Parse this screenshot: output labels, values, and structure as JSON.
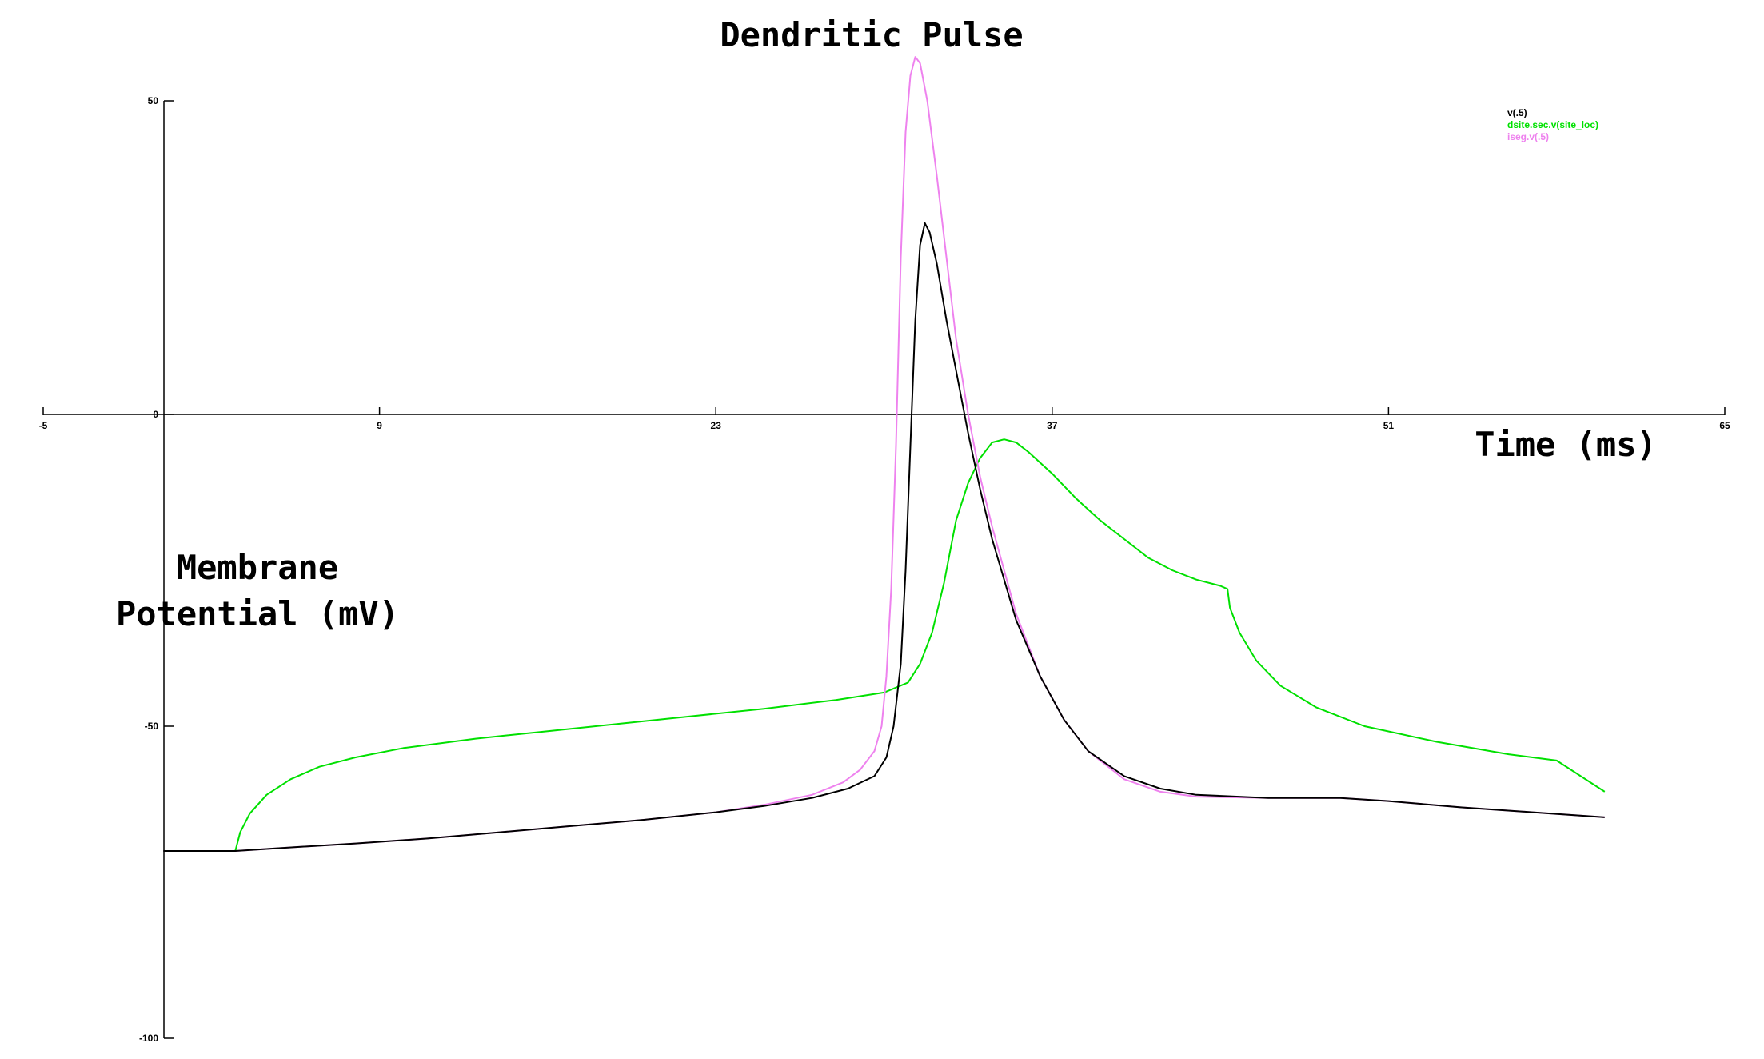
{
  "chart_data": {
    "type": "line",
    "title": "Dendritic Pulse",
    "xlabel": "Time (ms)",
    "ylabel_lines": [
      "Membrane",
      "Potential (mV)"
    ],
    "xlim": [
      -5,
      65
    ],
    "ylim": [
      -100,
      50
    ],
    "x_ticks": [
      -5,
      9,
      23,
      37,
      51,
      65
    ],
    "y_ticks": [
      50,
      0,
      -50,
      -100
    ],
    "grid": false,
    "legend_position": "top-right",
    "series": [
      {
        "name": "v(.5)",
        "color": "#000000",
        "points": [
          [
            0,
            -70
          ],
          [
            3,
            -70
          ],
          [
            5,
            -69.5
          ],
          [
            8,
            -68.8
          ],
          [
            11,
            -68
          ],
          [
            14,
            -67
          ],
          [
            17,
            -66
          ],
          [
            20,
            -65
          ],
          [
            23,
            -63.8
          ],
          [
            25,
            -62.8
          ],
          [
            27,
            -61.5
          ],
          [
            28.5,
            -60
          ],
          [
            29.6,
            -58
          ],
          [
            30.1,
            -55
          ],
          [
            30.4,
            -50
          ],
          [
            30.7,
            -40
          ],
          [
            30.9,
            -25
          ],
          [
            31.1,
            -5
          ],
          [
            31.3,
            15
          ],
          [
            31.5,
            27
          ],
          [
            31.7,
            30.5
          ],
          [
            31.9,
            29
          ],
          [
            32.2,
            24
          ],
          [
            32.6,
            15
          ],
          [
            33,
            7
          ],
          [
            33.5,
            -3
          ],
          [
            34,
            -12
          ],
          [
            34.5,
            -20
          ],
          [
            35.5,
            -33
          ],
          [
            36.5,
            -42
          ],
          [
            37.5,
            -49
          ],
          [
            38.5,
            -54
          ],
          [
            40,
            -58
          ],
          [
            41.5,
            -60
          ],
          [
            43,
            -61
          ],
          [
            46,
            -61.5
          ],
          [
            49,
            -61.5
          ],
          [
            51,
            -62
          ],
          [
            54,
            -63
          ],
          [
            57,
            -63.8
          ],
          [
            60,
            -64.6
          ]
        ]
      },
      {
        "name": "dsite.sec.v(site_loc)",
        "color": "#00e000",
        "points": [
          [
            0,
            -70
          ],
          [
            3,
            -70
          ],
          [
            3.2,
            -67
          ],
          [
            3.6,
            -64
          ],
          [
            4.3,
            -61
          ],
          [
            5.3,
            -58.5
          ],
          [
            6.5,
            -56.5
          ],
          [
            8,
            -55
          ],
          [
            10,
            -53.5
          ],
          [
            13,
            -52
          ],
          [
            16,
            -50.8
          ],
          [
            19,
            -49.6
          ],
          [
            22,
            -48.4
          ],
          [
            25,
            -47.2
          ],
          [
            28,
            -45.8
          ],
          [
            30,
            -44.6
          ],
          [
            31,
            -43
          ],
          [
            31.5,
            -40
          ],
          [
            32,
            -35
          ],
          [
            32.5,
            -27
          ],
          [
            33,
            -17
          ],
          [
            33.5,
            -11
          ],
          [
            34,
            -7
          ],
          [
            34.5,
            -4.5
          ],
          [
            35,
            -4
          ],
          [
            35.5,
            -4.5
          ],
          [
            36,
            -6
          ],
          [
            37,
            -9.5
          ],
          [
            38,
            -13.5
          ],
          [
            39,
            -17
          ],
          [
            40,
            -20
          ],
          [
            41,
            -23
          ],
          [
            42,
            -25
          ],
          [
            43,
            -26.5
          ],
          [
            44,
            -27.5
          ],
          [
            44.3,
            -28
          ],
          [
            44.4,
            -31
          ],
          [
            44.8,
            -35
          ],
          [
            45.5,
            -39.5
          ],
          [
            46.5,
            -43.5
          ],
          [
            48,
            -47
          ],
          [
            50,
            -50
          ],
          [
            53,
            -52.5
          ],
          [
            56,
            -54.5
          ],
          [
            58,
            -55.5
          ],
          [
            60,
            -60.5
          ]
        ]
      },
      {
        "name": "iseg.v(.5)",
        "color": "#ee82ee",
        "points": [
          [
            0,
            -70
          ],
          [
            3,
            -70
          ],
          [
            5,
            -69.5
          ],
          [
            8,
            -68.8
          ],
          [
            11,
            -68
          ],
          [
            14,
            -67
          ],
          [
            17,
            -66
          ],
          [
            20,
            -65
          ],
          [
            23,
            -63.8
          ],
          [
            25,
            -62.6
          ],
          [
            27,
            -61
          ],
          [
            28.3,
            -59
          ],
          [
            29,
            -57
          ],
          [
            29.6,
            -54
          ],
          [
            29.9,
            -50
          ],
          [
            30.1,
            -42
          ],
          [
            30.3,
            -28
          ],
          [
            30.5,
            -5
          ],
          [
            30.7,
            25
          ],
          [
            30.9,
            45
          ],
          [
            31.1,
            54
          ],
          [
            31.3,
            57
          ],
          [
            31.5,
            56
          ],
          [
            31.8,
            50
          ],
          [
            32.2,
            38
          ],
          [
            32.6,
            25
          ],
          [
            33,
            12
          ],
          [
            33.5,
            0
          ],
          [
            34,
            -10
          ],
          [
            34.5,
            -18
          ],
          [
            35.5,
            -32
          ],
          [
            36.5,
            -42
          ],
          [
            37.5,
            -49
          ],
          [
            38.5,
            -54
          ],
          [
            40,
            -58.5
          ],
          [
            41.5,
            -60.5
          ],
          [
            43,
            -61.3
          ],
          [
            46,
            -61.5
          ],
          [
            49,
            -61.5
          ],
          [
            51,
            -62
          ],
          [
            54,
            -63
          ],
          [
            57,
            -63.8
          ],
          [
            60,
            -64.6
          ]
        ]
      }
    ]
  }
}
